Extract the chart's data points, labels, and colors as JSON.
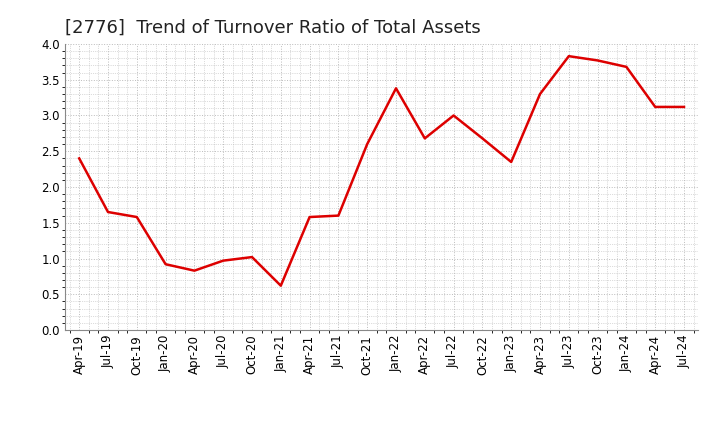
{
  "title": "[2776]  Trend of Turnover Ratio of Total Assets",
  "line_color": "#dd0000",
  "background_color": "#ffffff",
  "grid_color": "#bbbbbb",
  "ylim": [
    0.0,
    4.0
  ],
  "yticks": [
    0.0,
    0.5,
    1.0,
    1.5,
    2.0,
    2.5,
    3.0,
    3.5,
    4.0
  ],
  "x_labels": [
    "Apr-19",
    "Jul-19",
    "Oct-19",
    "Jan-20",
    "Apr-20",
    "Jul-20",
    "Oct-20",
    "Jan-21",
    "Apr-21",
    "Jul-21",
    "Oct-21",
    "Jan-22",
    "Apr-22",
    "Jul-22",
    "Oct-22",
    "Jan-23",
    "Apr-23",
    "Jul-23",
    "Oct-23",
    "Jan-24",
    "Apr-24",
    "Jul-24"
  ],
  "y_values": [
    2.4,
    1.65,
    1.58,
    0.92,
    0.83,
    0.97,
    1.02,
    0.62,
    1.58,
    1.6,
    2.6,
    3.38,
    2.68,
    3.0,
    2.68,
    2.35,
    3.3,
    3.83,
    3.77,
    3.68,
    3.12,
    3.12
  ],
  "title_fontsize": 13,
  "tick_fontsize": 8.5,
  "line_width": 1.8
}
